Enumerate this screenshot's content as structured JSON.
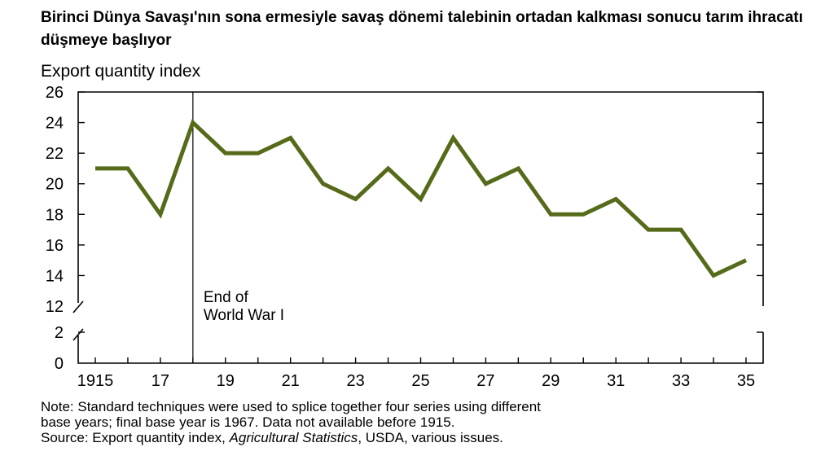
{
  "title": "Birinci Dünya Savaşı'nın sona ermesiyle savaş dönemi talebinin ortadan kalkması sonucu tarım ihracatı düşmeye başlıyor",
  "colors": {
    "line": "#556b1a",
    "axis": "#000000"
  },
  "chart_data": {
    "type": "line",
    "title": "",
    "ylabel": "Export quantity index",
    "xlabel": "",
    "x": [
      1915,
      1916,
      1917,
      1918,
      1919,
      1920,
      1921,
      1922,
      1923,
      1924,
      1925,
      1926,
      1927,
      1928,
      1929,
      1930,
      1931,
      1932,
      1933,
      1934,
      1935
    ],
    "series": [
      {
        "values": [
          21,
          21,
          18,
          24,
          22,
          22,
          23,
          20,
          19,
          21,
          19,
          23,
          20,
          21,
          18,
          18,
          19,
          17,
          17,
          14,
          15
        ]
      }
    ],
    "xlim": [
      1915,
      1935
    ],
    "ylim_upper": [
      12,
      26
    ],
    "ylim_lower": [
      0,
      2
    ],
    "axis_break": true,
    "x_tick_labels": [
      "1915",
      "17",
      "19",
      "21",
      "23",
      "25",
      "27",
      "29",
      "31",
      "33",
      "35"
    ],
    "x_tick_values": [
      1915,
      1917,
      1919,
      1921,
      1923,
      1925,
      1927,
      1929,
      1931,
      1933,
      1935
    ],
    "y_tick_labels_upper": [
      "12",
      "14",
      "16",
      "18",
      "20",
      "22",
      "24",
      "26"
    ],
    "y_tick_labels_lower": [
      "0",
      "2"
    ],
    "annotation": {
      "text_line1": "End of",
      "text_line2": "World War I",
      "x": 1918
    },
    "grid": false
  },
  "notes": {
    "line1": "Note: Standard techniques were used to splice together four series using different",
    "line2": "base years; final base year is 1967. Data not available before 1915.",
    "source_prefix": "Source:  Export quantity index, ",
    "source_italic": "Agricultural Statistics",
    "source_suffix": ", USDA, various issues."
  }
}
